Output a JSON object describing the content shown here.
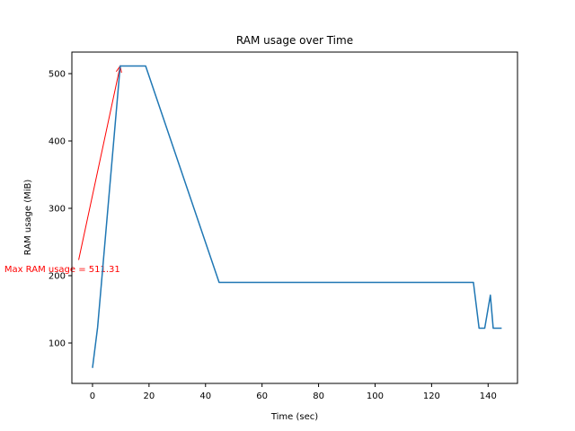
{
  "chart_data": {
    "type": "line",
    "title": "RAM usage over Time",
    "xlabel": "Time (sec)",
    "ylabel": "RAM usage (MiB)",
    "xlim": [
      -7.3,
      150.4
    ],
    "ylim": [
      40,
      532
    ],
    "xticks": [
      0,
      20,
      40,
      60,
      80,
      100,
      120,
      140
    ],
    "yticks": [
      100,
      200,
      300,
      400,
      500
    ],
    "grid": false,
    "colors": {
      "line": "#1f77b4",
      "annotation": "#ff0000",
      "axes": "#000000"
    },
    "series": [
      {
        "x": [
          0,
          1.8,
          7.8,
          9.8,
          18.8,
          44.8,
          134.8,
          136.8,
          138.8,
          140.8,
          141.8,
          144.8
        ],
        "y": [
          63,
          123,
          414,
          511.31,
          511.31,
          190,
          190,
          122,
          122,
          171,
          122,
          122
        ]
      }
    ],
    "annotations": [
      {
        "text": "Max RAM usage = 511.31",
        "point": [
          9.8,
          511.31
        ],
        "text_pos": [
          -10.7,
          210
        ]
      }
    ]
  }
}
